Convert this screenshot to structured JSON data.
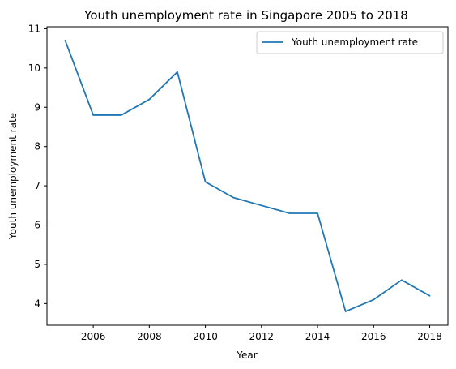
{
  "chart_data": {
    "type": "line",
    "title": "Youth unemployment rate in Singapore 2005 to 2018",
    "xlabel": "Year",
    "ylabel": "Youth unemployment rate",
    "xlim": [
      2004.35,
      2018.65
    ],
    "ylim": [
      3.45,
      11.05
    ],
    "x_ticks": [
      2006,
      2008,
      2010,
      2012,
      2014,
      2016,
      2018
    ],
    "y_ticks": [
      4,
      5,
      6,
      7,
      8,
      9,
      10,
      11
    ],
    "x": [
      2005,
      2006,
      2007,
      2008,
      2009,
      2010,
      2011,
      2012,
      2013,
      2014,
      2015,
      2016,
      2017,
      2018
    ],
    "series": [
      {
        "name": "Youth unemployment rate",
        "color": "#1f77b4",
        "values": [
          10.7,
          8.8,
          8.8,
          9.2,
          9.9,
          7.1,
          6.7,
          6.5,
          6.3,
          6.3,
          3.8,
          4.1,
          4.6,
          4.2
        ]
      }
    ],
    "grid": false,
    "legend": "top-right"
  }
}
